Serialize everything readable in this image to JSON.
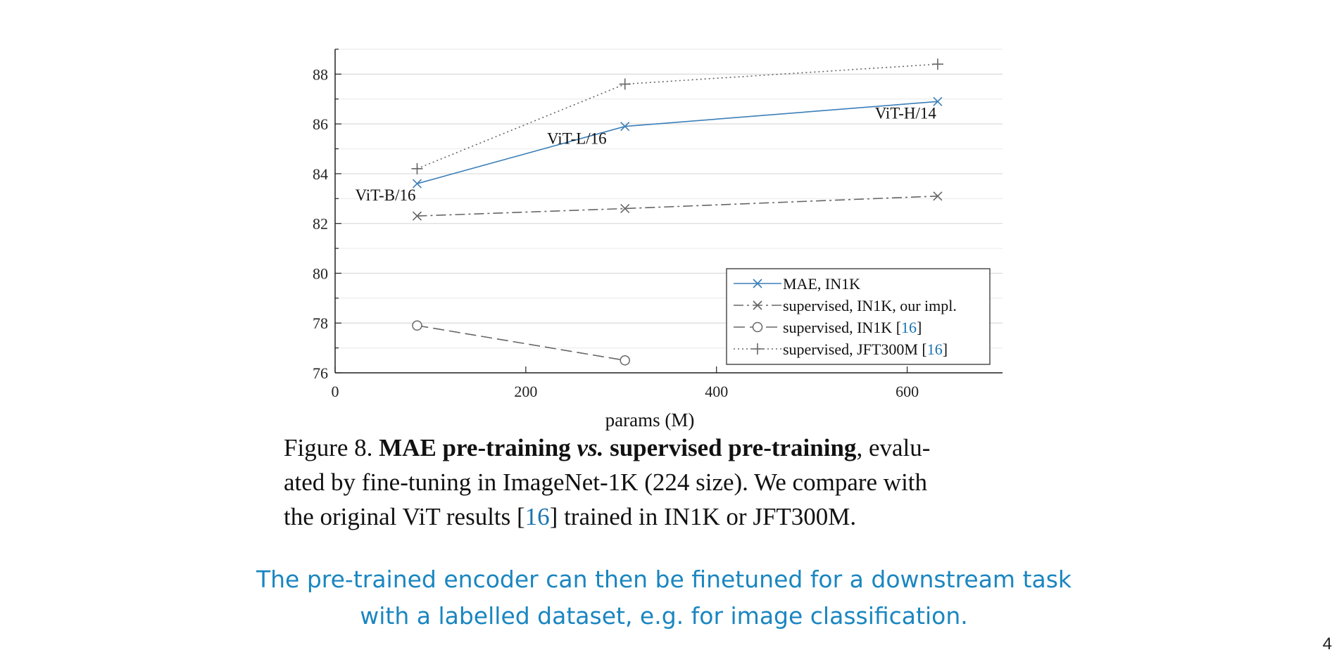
{
  "chart_data": {
    "type": "line",
    "xlabel": "params (M)",
    "ylabel": "",
    "xlim": [
      0,
      700
    ],
    "ylim": [
      76,
      89
    ],
    "x_ticks": [
      "0",
      "200",
      "400",
      "600"
    ],
    "y_ticks": [
      "76",
      "78",
      "80",
      "82",
      "84",
      "86",
      "88"
    ],
    "grid": "horizontal",
    "legend_position": "lower-right",
    "point_labels": [
      {
        "text": "ViT-B/16",
        "x": 86,
        "y": 83.6
      },
      {
        "text": "ViT-L/16",
        "x": 304,
        "y": 85.9
      },
      {
        "text": "ViT-H/14",
        "x": 632,
        "y": 86.9
      }
    ],
    "series": [
      {
        "name": "MAE, IN1K",
        "ref": "",
        "color": "#3b7fb8",
        "style": "solid",
        "marker": "x",
        "x": [
          86,
          304,
          632
        ],
        "y": [
          83.6,
          85.9,
          86.9
        ]
      },
      {
        "name": "supervised, IN1K, our impl.",
        "ref": "",
        "color": "#666666",
        "style": "dashdot",
        "marker": "x",
        "x": [
          86,
          304,
          632
        ],
        "y": [
          82.3,
          82.6,
          83.1
        ]
      },
      {
        "name": "supervised, IN1K",
        "ref": "16",
        "color": "#666666",
        "style": "dashed",
        "marker": "o",
        "x": [
          86,
          304
        ],
        "y": [
          77.9,
          76.5
        ]
      },
      {
        "name": "supervised, JFT300M",
        "ref": "16",
        "color": "#666666",
        "style": "dotted",
        "marker": "+",
        "x": [
          86,
          304,
          632
        ],
        "y": [
          84.2,
          87.6,
          88.4
        ]
      }
    ]
  },
  "caption": {
    "figure_label": "Figure 8.",
    "bold_title": "MAE pre-training vs. supervised pre-training",
    "line1_rest": ", evalu-",
    "line2": "ated by fine-tuning in ImageNet-1K (224 size). We compare with",
    "line3_a": "the original ViT results [",
    "line3_ref": "16",
    "line3_b": "] trained in IN1K or JFT300M."
  },
  "note": {
    "line1": "The pre-trained encoder can then be finetuned for a downstream task",
    "line2": "with a labelled dataset, e.g. for image classification."
  },
  "page_number": "4"
}
